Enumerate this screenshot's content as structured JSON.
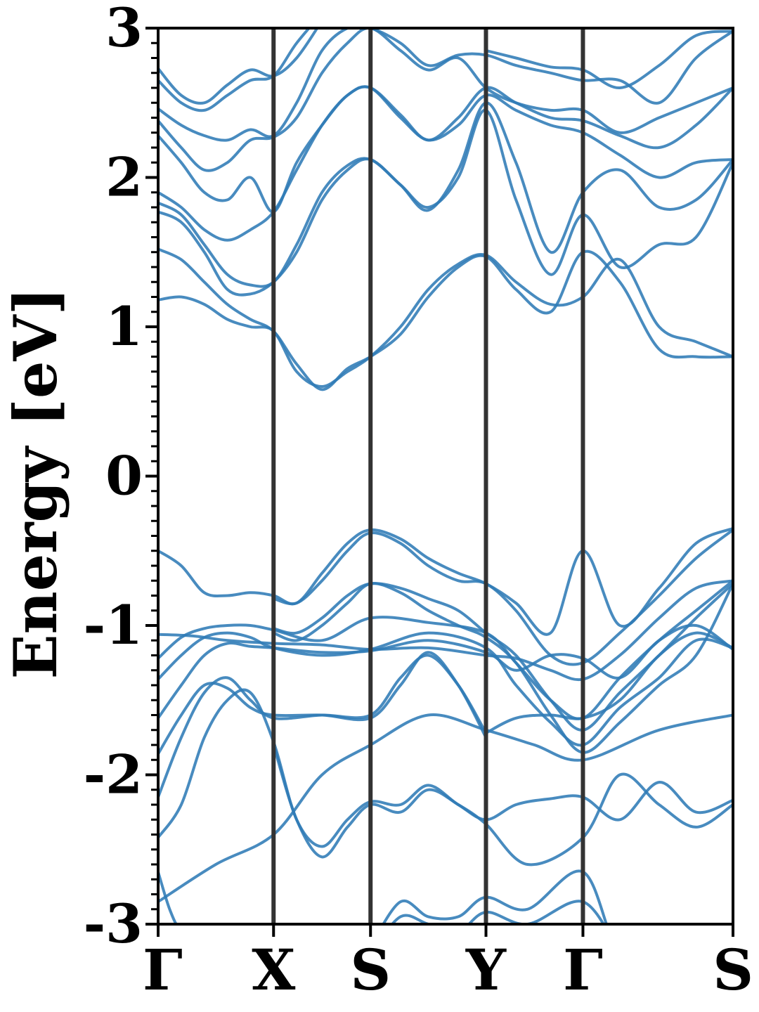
{
  "chart_data": {
    "type": "line",
    "title": "",
    "xlabel": "",
    "ylabel": "Energy [eV]",
    "ylim": [
      -3,
      3
    ],
    "yticks": [
      -3,
      -2,
      -1,
      0,
      1,
      2,
      3
    ],
    "ytick_labels": [
      "-3",
      "-2",
      "-1",
      "0",
      "1",
      "2",
      "3"
    ],
    "minor_ytick_step": 0.1,
    "grid": false,
    "legend": "none",
    "kpath": [
      {
        "label": "Γ",
        "x": 0.0
      },
      {
        "label": "X",
        "x": 0.5
      },
      {
        "label": "S",
        "x": 0.92
      },
      {
        "label": "Y",
        "x": 1.42
      },
      {
        "label": "Γ",
        "x": 1.84
      },
      {
        "label": "S",
        "x": 2.49
      }
    ],
    "xlim": [
      0,
      2.49
    ],
    "colors": {
      "band": "#2f7bb6",
      "kline": "#333333",
      "axis": "#000000"
    },
    "series": [
      {
        "x": [
          0,
          0.25,
          0.5,
          0.71,
          0.92,
          1.17,
          1.42,
          1.63,
          1.84,
          2.17,
          2.49
        ],
        "values": [
          -2.85,
          -2.6,
          -2.4,
          -2.0,
          -1.8,
          -1.6,
          -1.7,
          -1.8,
          -1.9,
          -1.7,
          -1.6
        ]
      },
      {
        "x": [
          0,
          0.05,
          0.1,
          0.2,
          0.3,
          0.4,
          0.5
        ],
        "values": [
          -2.65,
          -2.9,
          -3.05,
          -3.2,
          -3.3,
          -3.3,
          -3.3
        ]
      },
      {
        "x": [
          0,
          0.1,
          0.2,
          0.3,
          0.4,
          0.5,
          0.6,
          0.71,
          0.82,
          0.92,
          1.05,
          1.17,
          1.3,
          1.42,
          1.55,
          1.7,
          1.84,
          2.0,
          2.17,
          2.33,
          2.49
        ],
        "values": [
          -2.42,
          -2.2,
          -1.75,
          -1.5,
          -1.45,
          -1.78,
          -2.3,
          -2.48,
          -2.3,
          -2.18,
          -2.2,
          -2.07,
          -2.2,
          -2.3,
          -2.2,
          -2.16,
          -2.15,
          -2.3,
          -2.05,
          -2.25,
          -2.17
        ]
      },
      {
        "x": [
          0.5,
          0.6,
          0.71,
          0.82,
          0.92,
          1.05,
          1.17,
          1.3,
          1.42,
          1.6,
          1.84,
          2.0,
          2.17,
          2.33,
          2.49
        ],
        "values": [
          -1.8,
          -2.3,
          -2.55,
          -2.35,
          -2.2,
          -2.25,
          -2.1,
          -2.2,
          -2.33,
          -2.6,
          -2.42,
          -2.0,
          -2.2,
          -2.35,
          -2.2
        ]
      },
      {
        "x": [
          0,
          0.1,
          0.2,
          0.3,
          0.4,
          0.5,
          0.71,
          0.92,
          1.05,
          1.17,
          1.3,
          1.42
        ],
        "values": [
          -2.15,
          -1.75,
          -1.45,
          -1.35,
          -1.5,
          -1.62,
          -1.6,
          -1.6,
          -1.35,
          -1.2,
          -1.4,
          -1.72
        ]
      },
      {
        "x": [
          0,
          0.1,
          0.2,
          0.3,
          0.4,
          0.5,
          0.71,
          0.92,
          1.05,
          1.17,
          1.3,
          1.42
        ],
        "values": [
          -1.86,
          -1.6,
          -1.4,
          -1.42,
          -1.55,
          -1.6,
          -1.6,
          -1.62,
          -1.4,
          -1.18,
          -1.4,
          -1.75
        ]
      },
      {
        "x": [
          1.42,
          1.55,
          1.7,
          1.84,
          2.0,
          2.17,
          2.33,
          2.49
        ],
        "values": [
          -1.72,
          -1.62,
          -1.6,
          -1.62,
          -1.5,
          -1.2,
          -1.05,
          -1.15
        ]
      },
      {
        "x": [
          0,
          0.1,
          0.2,
          0.3,
          0.4,
          0.5,
          0.71,
          0.92,
          1.17,
          1.42,
          1.55,
          1.7,
          1.84,
          2.0,
          2.17,
          2.33,
          2.49
        ],
        "values": [
          -1.62,
          -1.4,
          -1.2,
          -1.12,
          -1.14,
          -1.15,
          -1.18,
          -1.17,
          -1.1,
          -1.18,
          -1.3,
          -1.2,
          -1.22,
          -1.35,
          -1.1,
          -1.0,
          -1.16
        ]
      },
      {
        "x": [
          0,
          0.1,
          0.2,
          0.3,
          0.4,
          0.5,
          0.71,
          0.92,
          1.17,
          1.42,
          1.55,
          1.7,
          1.84,
          2.0,
          2.17,
          2.33,
          2.49
        ],
        "values": [
          -1.36,
          -1.2,
          -1.08,
          -1.05,
          -1.08,
          -1.15,
          -1.2,
          -1.16,
          -1.05,
          -1.15,
          -1.4,
          -1.65,
          -1.8,
          -1.55,
          -1.35,
          -1.1,
          -1.15
        ]
      },
      {
        "x": [
          0,
          0.1,
          0.2,
          0.3,
          0.4,
          0.5,
          0.71,
          0.92,
          1.17,
          1.42,
          1.55,
          1.7,
          1.84,
          2.0,
          2.17,
          2.33,
          2.49
        ],
        "values": [
          -1.22,
          -1.08,
          -1.02,
          -1.0,
          -1.0,
          -1.03,
          -1.1,
          -0.95,
          -0.98,
          -1.05,
          -1.25,
          -1.5,
          -1.62,
          -1.35,
          -1.1,
          -0.9,
          -0.7
        ]
      },
      {
        "x": [
          0,
          0.15,
          0.3,
          0.5,
          0.71,
          0.92,
          1.17,
          1.42,
          1.55,
          1.7,
          1.84,
          2.0,
          2.17,
          2.33,
          2.49
        ],
        "values": [
          -1.06,
          -1.07,
          -1.1,
          -1.12,
          -1.13,
          -1.16,
          -1.15,
          -1.2,
          -1.22,
          -1.3,
          -1.36,
          -1.2,
          -0.95,
          -0.75,
          -0.7
        ]
      },
      {
        "x": [
          0,
          0.1,
          0.2,
          0.3,
          0.4,
          0.5,
          0.6,
          0.71,
          0.82,
          0.92,
          1.05,
          1.17,
          1.3,
          1.42,
          1.55,
          1.7,
          1.84,
          2.0,
          2.17,
          2.33,
          2.49
        ],
        "values": [
          -0.5,
          -0.6,
          -0.78,
          -0.8,
          -0.78,
          -0.8,
          -0.85,
          -0.65,
          -0.45,
          -0.36,
          -0.42,
          -0.55,
          -0.65,
          -0.72,
          -0.85,
          -1.05,
          -0.5,
          -1.0,
          -0.75,
          -0.45,
          -0.35
        ]
      },
      {
        "x": [
          0.5,
          0.6,
          0.71,
          0.82,
          0.92,
          1.05,
          1.17,
          1.3,
          1.42,
          1.55,
          1.7,
          1.84,
          2.0,
          2.17,
          2.33,
          2.49
        ],
        "values": [
          -0.82,
          -0.85,
          -0.7,
          -0.5,
          -0.38,
          -0.45,
          -0.6,
          -0.7,
          -0.72,
          -0.9,
          -1.2,
          -1.25,
          -1.05,
          -0.8,
          -0.55,
          -0.36
        ]
      },
      {
        "x": [
          0.5,
          0.6,
          0.71,
          0.82,
          0.92,
          1.05,
          1.17,
          1.3,
          1.42,
          1.55,
          1.7,
          1.84,
          2.0,
          2.17,
          2.33,
          2.49
        ],
        "values": [
          -1.02,
          -1.05,
          -0.95,
          -0.8,
          -0.72,
          -0.75,
          -0.82,
          -0.9,
          -1.05,
          -1.2,
          -1.5,
          -1.7,
          -1.45,
          -1.2,
          -0.95,
          -0.72
        ]
      },
      {
        "x": [
          0.5,
          0.6,
          0.71,
          0.82,
          0.92,
          1.05,
          1.17,
          1.3,
          1.42,
          1.55,
          1.7,
          1.84,
          2.0,
          2.17,
          2.33,
          2.49
        ],
        "values": [
          -1.05,
          -1.1,
          -1.0,
          -0.85,
          -0.72,
          -0.78,
          -0.9,
          -1.0,
          -1.08,
          -1.25,
          -1.6,
          -1.85,
          -1.65,
          -1.4,
          -1.2,
          -0.72
        ]
      },
      {
        "x": [
          0,
          0.1,
          0.2,
          0.3,
          0.4,
          0.5,
          0.6,
          0.71,
          0.82,
          0.92,
          1.05,
          1.17,
          1.3,
          1.42,
          1.55,
          1.7,
          1.84,
          2.0,
          2.17,
          2.33,
          2.49
        ],
        "values": [
          1.18,
          1.2,
          1.15,
          1.05,
          1.0,
          0.97,
          0.7,
          0.6,
          0.7,
          0.8,
          1.0,
          1.25,
          1.42,
          1.48,
          1.3,
          1.15,
          1.2,
          1.45,
          1.0,
          0.9,
          0.8
        ]
      },
      {
        "x": [
          0,
          0.1,
          0.2,
          0.3,
          0.4,
          0.5,
          0.6,
          0.71,
          0.82,
          0.92,
          1.05,
          1.17,
          1.3,
          1.42,
          1.55,
          1.7,
          1.84,
          2.0,
          2.17,
          2.33,
          2.49
        ],
        "values": [
          1.52,
          1.45,
          1.3,
          1.15,
          1.05,
          0.97,
          0.75,
          0.58,
          0.72,
          0.8,
          0.95,
          1.2,
          1.4,
          1.47,
          1.25,
          1.1,
          1.5,
          1.3,
          0.85,
          0.8,
          0.8
        ]
      },
      {
        "x": [
          0,
          0.1,
          0.2,
          0.3,
          0.4,
          0.5,
          0.6,
          0.71,
          0.82,
          0.92,
          1.05,
          1.17,
          1.3,
          1.42,
          1.55,
          1.7,
          1.84,
          2.0,
          2.17,
          2.33,
          2.49
        ],
        "values": [
          1.77,
          1.7,
          1.5,
          1.25,
          1.22,
          1.3,
          1.5,
          1.85,
          2.05,
          2.12,
          1.95,
          1.8,
          2.0,
          2.45,
          1.85,
          1.35,
          1.75,
          1.4,
          1.55,
          1.6,
          2.1
        ]
      },
      {
        "x": [
          0,
          0.1,
          0.2,
          0.3,
          0.4,
          0.5,
          0.6,
          0.71,
          0.82,
          0.92,
          1.05,
          1.17,
          1.3,
          1.42,
          1.55,
          1.7,
          1.84,
          2.0,
          2.17,
          2.33,
          2.49
        ],
        "values": [
          1.83,
          1.75,
          1.55,
          1.35,
          1.28,
          1.3,
          1.55,
          1.9,
          2.08,
          2.12,
          1.95,
          1.78,
          2.05,
          2.5,
          2.1,
          1.5,
          1.9,
          2.05,
          1.8,
          1.85,
          2.12
        ]
      },
      {
        "x": [
          0,
          0.1,
          0.2,
          0.3,
          0.4,
          0.5,
          0.6,
          0.71,
          0.82,
          0.92,
          1.05,
          1.17,
          1.3,
          1.42,
          1.55,
          1.7,
          1.84,
          2.0,
          2.17,
          2.33,
          2.49
        ],
        "values": [
          1.9,
          1.8,
          1.65,
          1.58,
          1.65,
          1.77,
          2.05,
          2.35,
          2.55,
          2.6,
          2.4,
          2.25,
          2.35,
          2.55,
          2.45,
          2.35,
          2.3,
          2.15,
          2.0,
          2.1,
          2.12
        ]
      },
      {
        "x": [
          0,
          0.1,
          0.2,
          0.3,
          0.4,
          0.5,
          0.6,
          0.71,
          0.82,
          0.92,
          1.05,
          1.17,
          1.3,
          1.42,
          1.55,
          1.7,
          1.84,
          2.0,
          2.17,
          2.33,
          2.49
        ],
        "values": [
          2.28,
          2.1,
          1.9,
          1.85,
          2.0,
          1.77,
          2.1,
          2.35,
          2.55,
          2.6,
          2.42,
          2.25,
          2.4,
          2.6,
          2.5,
          2.4,
          2.38,
          2.28,
          2.2,
          2.35,
          2.6
        ]
      },
      {
        "x": [
          0,
          0.1,
          0.2,
          0.3,
          0.4,
          0.5,
          0.6,
          0.71,
          0.82,
          0.92,
          1.05,
          1.17,
          1.3,
          1.42,
          1.55,
          1.7,
          1.84,
          2.0,
          2.17,
          2.33,
          2.49
        ],
        "values": [
          2.38,
          2.2,
          2.05,
          2.1,
          2.25,
          2.27,
          2.4,
          2.7,
          2.9,
          3.0,
          2.85,
          2.72,
          2.8,
          2.6,
          2.5,
          2.45,
          2.45,
          2.3,
          2.4,
          2.5,
          2.6
        ]
      },
      {
        "x": [
          0,
          0.1,
          0.2,
          0.3,
          0.4,
          0.5,
          0.6,
          0.71,
          0.82,
          0.92,
          1.05,
          1.17,
          1.3,
          1.42,
          1.55,
          1.7,
          1.84,
          2.0,
          2.17,
          2.33,
          2.49
        ],
        "values": [
          2.46,
          2.35,
          2.28,
          2.25,
          2.32,
          2.28,
          2.5,
          2.85,
          3.0,
          3.0,
          2.9,
          2.75,
          2.82,
          2.82,
          2.75,
          2.7,
          2.65,
          2.65,
          2.5,
          2.8,
          2.98
        ]
      },
      {
        "x": [
          0,
          0.1,
          0.2,
          0.3,
          0.4,
          0.5,
          0.6,
          0.71
        ],
        "values": [
          2.65,
          2.5,
          2.45,
          2.55,
          2.65,
          2.68,
          2.9,
          3.1
        ]
      },
      {
        "x": [
          0,
          0.1,
          0.2,
          0.3,
          0.4,
          0.5,
          0.6,
          0.71
        ],
        "values": [
          2.73,
          2.55,
          2.5,
          2.62,
          2.72,
          2.68,
          2.8,
          3.05
        ]
      },
      {
        "x": [
          1.42,
          1.55,
          1.7,
          1.84,
          2.0,
          2.17,
          2.33,
          2.49
        ],
        "values": [
          2.85,
          2.8,
          2.74,
          2.72,
          2.6,
          2.75,
          2.95,
          2.98
        ]
      },
      {
        "x": [
          0.92,
          1.05,
          1.17,
          1.3,
          1.42,
          1.6,
          1.84,
          2.0,
          2.17,
          2.33,
          2.49
        ],
        "values": [
          -3.15,
          -2.85,
          -2.95,
          -2.95,
          -2.82,
          -2.9,
          -2.65,
          -3.2,
          -3.1,
          -3.0,
          -3.1
        ]
      },
      {
        "x": [
          0.92,
          1.05,
          1.17,
          1.3,
          1.42,
          1.6,
          1.84,
          2.0
        ],
        "values": [
          -3.2,
          -2.95,
          -3.0,
          -3.05,
          -2.92,
          -3.0,
          -2.85,
          -3.2
        ]
      }
    ]
  }
}
